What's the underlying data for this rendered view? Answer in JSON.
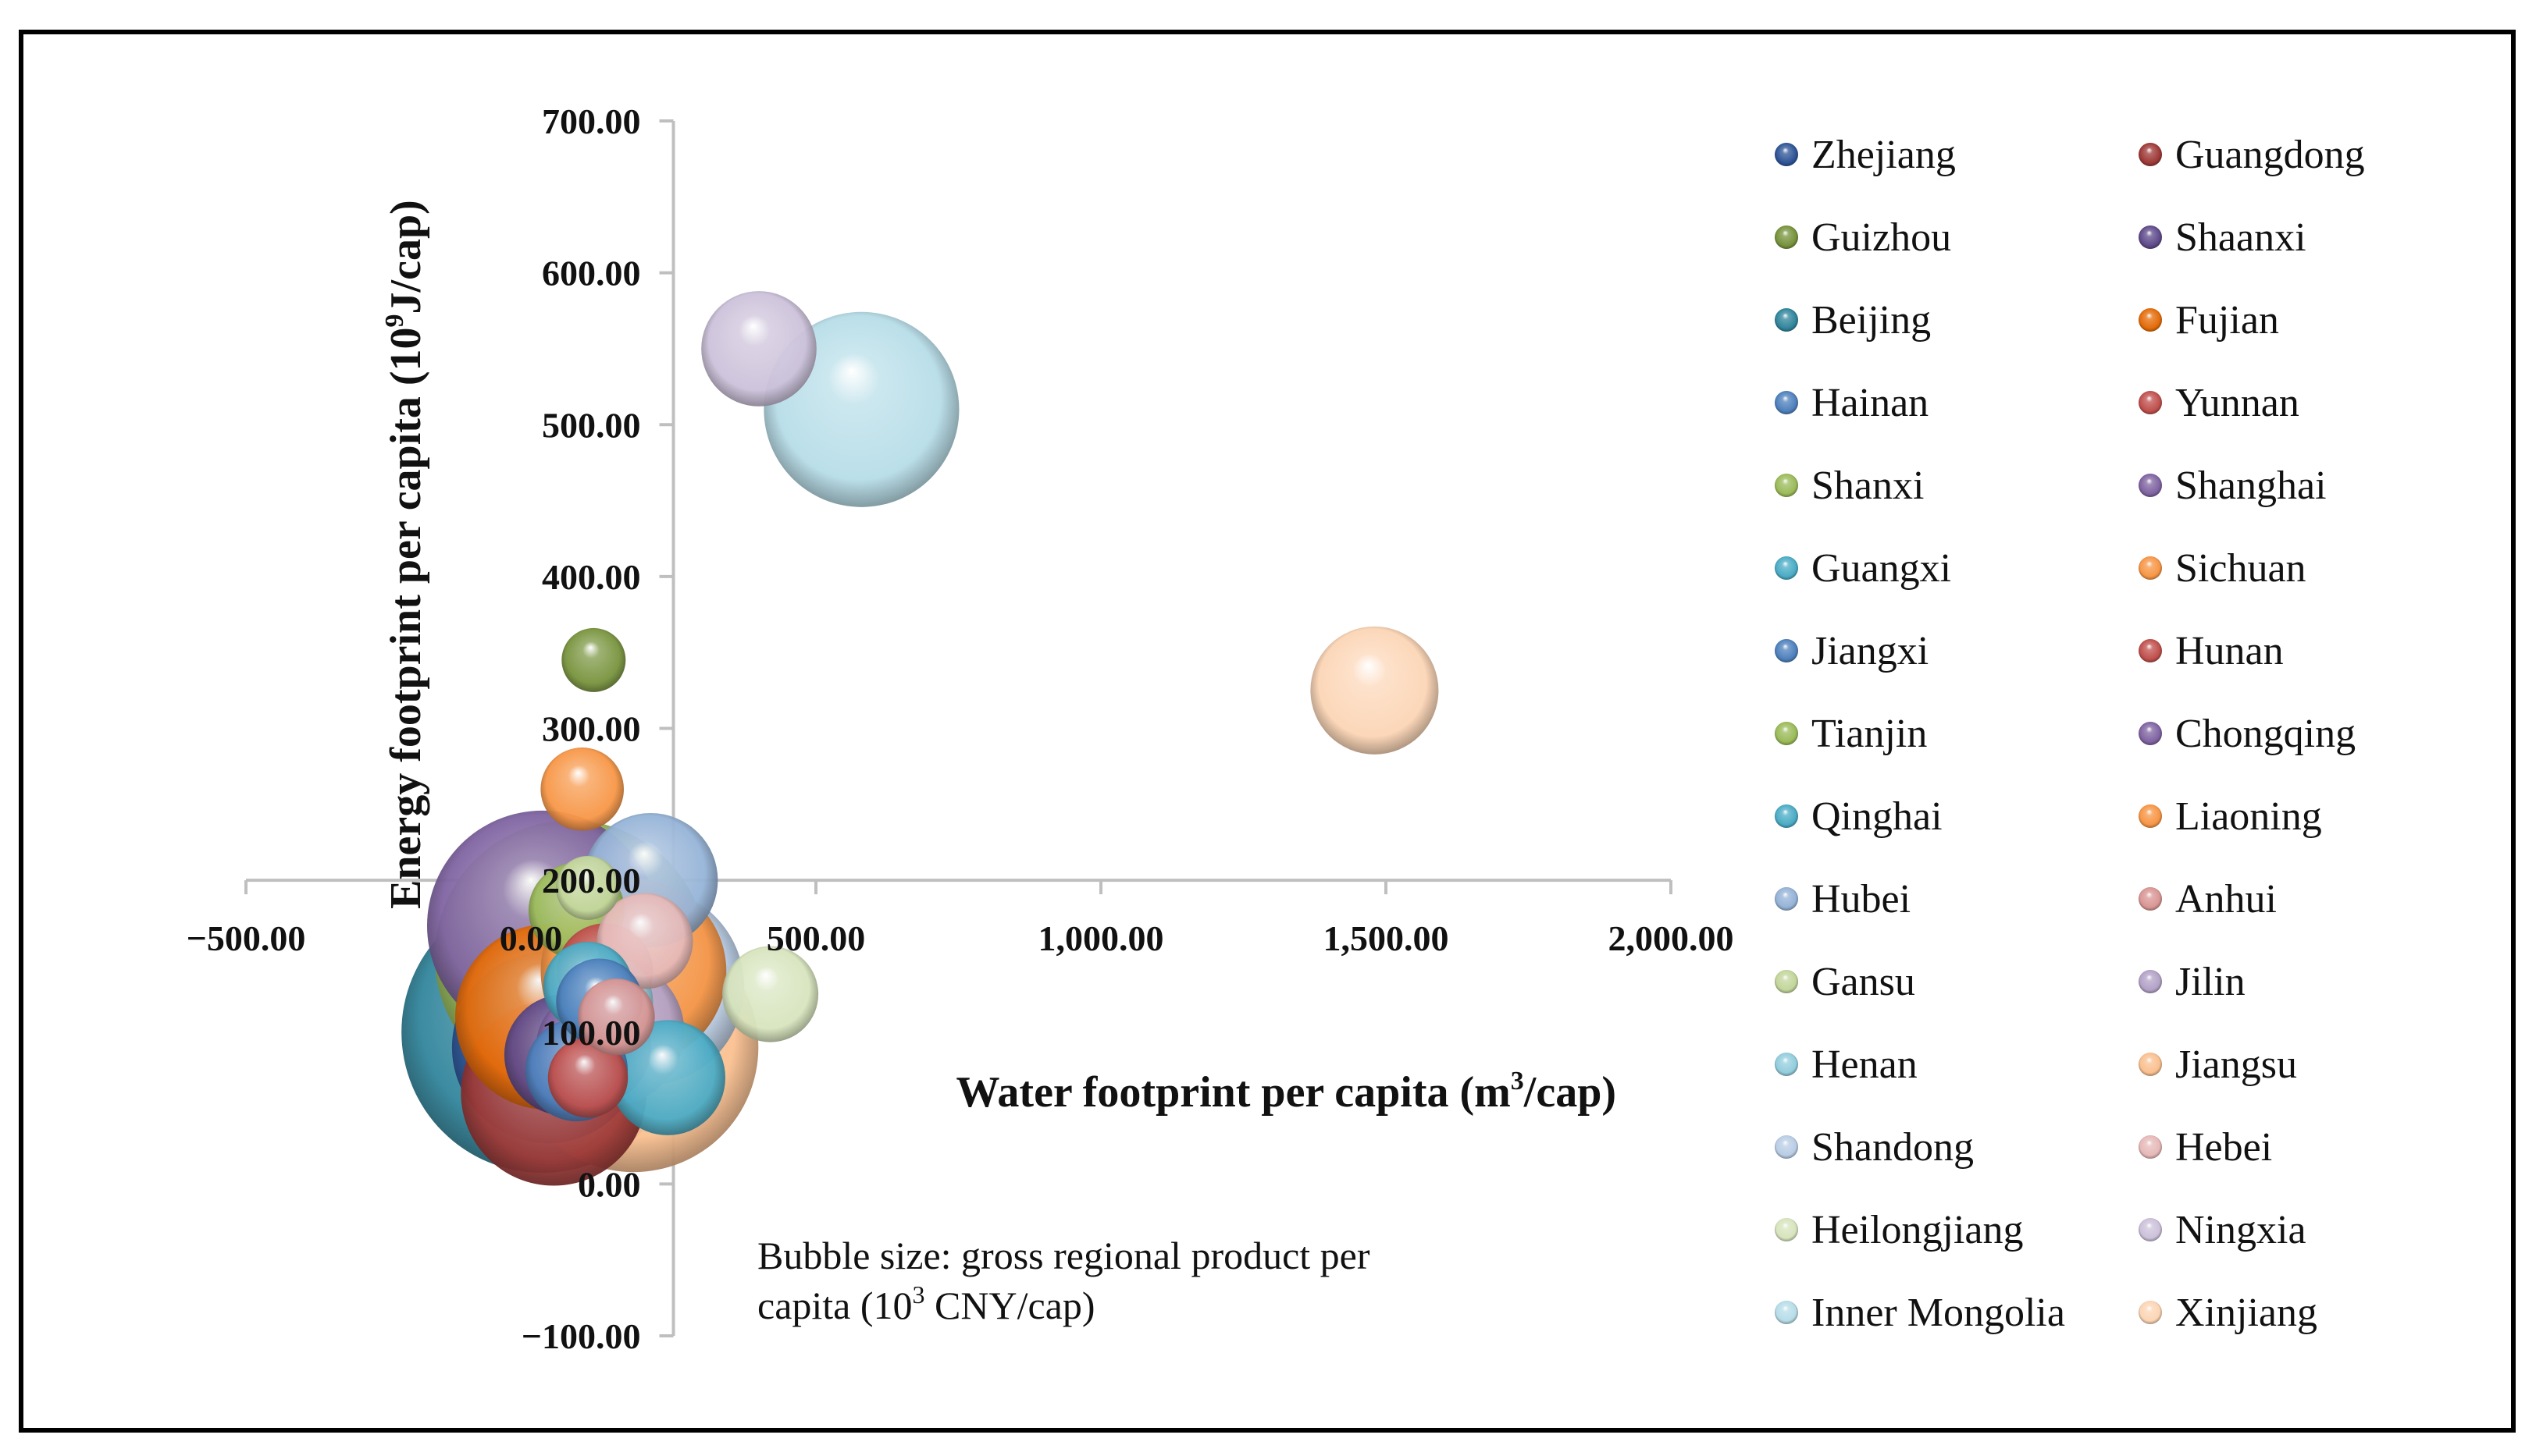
{
  "chart_data": {
    "type": "bubble",
    "title": "",
    "xlabel_main": "Water footprint per capita (m",
    "xlabel_sup": "3",
    "xlabel_end": "/cap)",
    "ylabel_main": "Energy footprint per capita (10",
    "ylabel_sup": "9",
    "ylabel_end": "J/cap)",
    "xlim": [
      -500,
      2000
    ],
    "ylim": [
      -100,
      700
    ],
    "x_ticks": [
      "−500.00",
      "0.00",
      "500.00",
      "1,000.00",
      "1,500.00",
      "2,000.00"
    ],
    "x_tick_values": [
      -500,
      0,
      500,
      1000,
      1500,
      2000
    ],
    "y_ticks": [
      "−100.00",
      "0.00",
      "100.00",
      "200.00",
      "300.00",
      "400.00",
      "500.00",
      "600.00",
      "700.00"
    ],
    "y_tick_values": [
      -100,
      0,
      100,
      200,
      300,
      400,
      500,
      600,
      700
    ],
    "note_line1": "Bubble size: gross regional product  per",
    "note_line2_a": "capita (10",
    "note_line2_sup": "3",
    "note_line2_b": " CNY/cap)",
    "legend_position": "right",
    "series": [
      {
        "name": "Zhejiang",
        "x": 30,
        "y": 90,
        "size": 60,
        "color": "#2f5597"
      },
      {
        "name": "Guangdong",
        "x": 40,
        "y": 60,
        "size": 58,
        "color": "#9e3a38"
      },
      {
        "name": "Guizhou",
        "x": 110,
        "y": 345,
        "size": 20,
        "color": "#77933c"
      },
      {
        "name": "Shaanxi",
        "x": 60,
        "y": 85,
        "size": 38,
        "color": "#5f4b8b"
      },
      {
        "name": "Beijing",
        "x": 20,
        "y": 100,
        "size": 88,
        "color": "#31859c"
      },
      {
        "name": "Fujian",
        "x": 30,
        "y": 110,
        "size": 58,
        "color": "#e46c0a"
      },
      {
        "name": "Hainan",
        "x": 80,
        "y": 75,
        "size": 32,
        "color": "#4f81bd"
      },
      {
        "name": "Yunnan",
        "x": 100,
        "y": 70,
        "size": 25,
        "color": "#c0504d"
      },
      {
        "name": "Shanxi",
        "x": 80,
        "y": 180,
        "size": 30,
        "color": "#9bbb59"
      },
      {
        "name": "Shanghai",
        "x": 20,
        "y": 170,
        "size": 72,
        "color": "#8064a2"
      },
      {
        "name": "Guangxi",
        "x": 100,
        "y": 130,
        "size": 28,
        "color": "#4bacc6"
      },
      {
        "name": "Sichuan",
        "x": 90,
        "y": 260,
        "size": 26,
        "color": "#f79646"
      },
      {
        "name": "Jiangxi",
        "x": 120,
        "y": 120,
        "size": 27,
        "color": "#4f81bd"
      },
      {
        "name": "Hunan",
        "x": 130,
        "y": 140,
        "size": 30,
        "color": "#c0504d"
      },
      {
        "name": "Tianjin",
        "x": 70,
        "y": 150,
        "size": 85,
        "color": "#9bbb59"
      },
      {
        "name": "Chongqing",
        "x": 110,
        "y": 90,
        "size": 36,
        "color": "#8064a2"
      },
      {
        "name": "Qinghai",
        "x": 240,
        "y": 70,
        "size": 36,
        "color": "#4bacc6"
      },
      {
        "name": "Liaoning",
        "x": 180,
        "y": 140,
        "size": 58,
        "color": "#f79646"
      },
      {
        "name": "Hubei",
        "x": 210,
        "y": 200,
        "size": 42,
        "color": "#95b3d7"
      },
      {
        "name": "Anhui",
        "x": 150,
        "y": 110,
        "size": 24,
        "color": "#d99694"
      },
      {
        "name": "Gansu",
        "x": 100,
        "y": 195,
        "size": 20,
        "color": "#c3d69b"
      },
      {
        "name": "Jilin",
        "x": 140,
        "y": 100,
        "size": 46,
        "color": "#b3a2c7"
      },
      {
        "name": "Henan",
        "x": 130,
        "y": 120,
        "size": 30,
        "color": "#93cddd"
      },
      {
        "name": "Jiangsu",
        "x": 180,
        "y": 90,
        "size": 78,
        "color": "#fac090"
      },
      {
        "name": "Shandong",
        "x": 200,
        "y": 130,
        "size": 62,
        "color": "#b9cde5"
      },
      {
        "name": "Hebei",
        "x": 200,
        "y": 160,
        "size": 30,
        "color": "#e6b9b8"
      },
      {
        "name": "Heilongjiang",
        "x": 420,
        "y": 125,
        "size": 30,
        "color": "#d7e4bd"
      },
      {
        "name": "Ningxia",
        "x": 400,
        "y": 550,
        "size": 36,
        "color": "#ccc1da"
      },
      {
        "name": "Inner Mongolia",
        "x": 580,
        "y": 510,
        "size": 61,
        "color": "#b7dde8"
      },
      {
        "name": "Xinjiang",
        "x": 1480,
        "y": 325,
        "size": 40,
        "color": "#fcd5b5"
      }
    ]
  }
}
